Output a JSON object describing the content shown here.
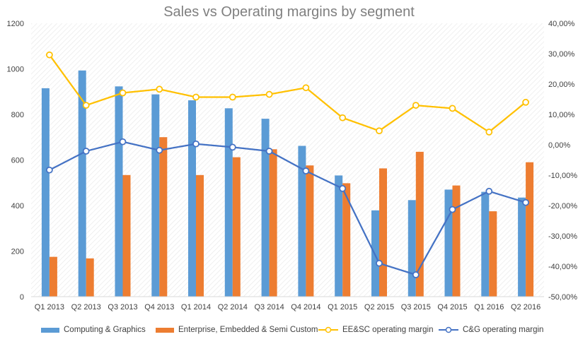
{
  "chart_data": {
    "type": "bar",
    "title": "Sales vs Operating margins by segment",
    "categories": [
      "Q1 2013",
      "Q2 2013",
      "Q3 2013",
      "Q4 2013",
      "Q1 2014",
      "Q2 2014",
      "Q3 2014",
      "Q4 2014",
      "Q1 2015",
      "Q2 2015",
      "Q3 2015",
      "Q4 2015",
      "Q1 2016",
      "Q2 2016"
    ],
    "y_left": {
      "min": 0,
      "max": 1200,
      "ticks": [
        "0",
        "200",
        "400",
        "600",
        "800",
        "1000",
        "1200"
      ]
    },
    "y_right": {
      "min": -50,
      "max": 40,
      "ticks": [
        "-50,00%",
        "-40,00%",
        "-30,00%",
        "-20,00%",
        "-10,00%",
        "0,00%",
        "10,00%",
        "20,00%",
        "30,00%",
        "40,00%"
      ]
    },
    "grid": false,
    "legend_position": "bottom",
    "series": [
      {
        "name": "Computing & Graphics",
        "kind": "bar",
        "axis": "left",
        "color": "#5b9bd5",
        "values": [
          915,
          993,
          923,
          888,
          862,
          827,
          781,
          662,
          532,
          379,
          424,
          470,
          460,
          435
        ]
      },
      {
        "name": "Enterprise, Embedded & Semi Custom",
        "kind": "bar",
        "axis": "left",
        "color": "#ed7d31",
        "values": [
          175,
          168,
          534,
          700,
          534,
          612,
          647,
          576,
          498,
          563,
          636,
          488,
          375,
          590
        ]
      },
      {
        "name": "EE&SC operating margin",
        "kind": "line",
        "axis": "right",
        "color": "#ffc000",
        "values": [
          29.6,
          13.0,
          17.1,
          18.3,
          15.7,
          15.7,
          16.6,
          18.8,
          8.9,
          4.6,
          13.0,
          12.0,
          4.2,
          14.0
        ]
      },
      {
        "name": "C&G operating margin",
        "kind": "line",
        "axis": "right",
        "color": "#4472c4",
        "values": [
          -8.3,
          -2.1,
          1.0,
          -1.8,
          0.3,
          -0.8,
          -2.1,
          -8.6,
          -14.4,
          -39.0,
          -42.8,
          -21.3,
          -15.3,
          -19.0
        ]
      }
    ]
  }
}
